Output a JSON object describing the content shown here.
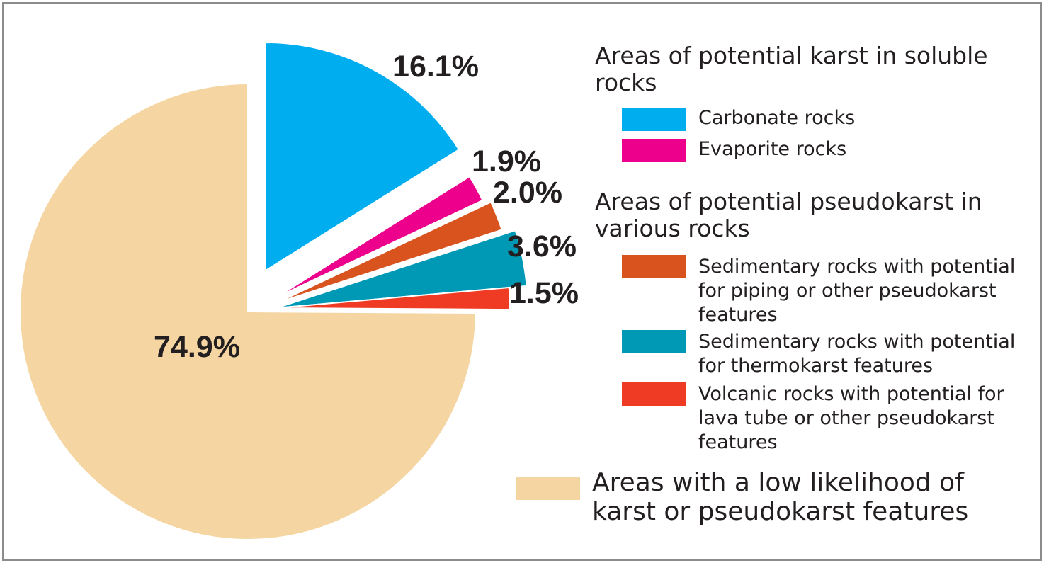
{
  "chart_data": {
    "type": "pie",
    "slices": [
      {
        "label": "Carbonate rocks",
        "value": 16.1,
        "display": "16.1%",
        "color": "#00aeef",
        "group": "karst"
      },
      {
        "label": "Evaporite rocks",
        "value": 1.9,
        "display": "1.9%",
        "color": "#ec008c",
        "group": "karst"
      },
      {
        "label": "Sedimentary rocks with potential for piping or other pseudokarst features",
        "value": 2.0,
        "display": "2.0%",
        "color": "#d9531e",
        "group": "pseudokarst"
      },
      {
        "label": "Sedimentary rocks with potential for thermokarst features",
        "value": 3.6,
        "display": "3.6%",
        "color": "#0099b5",
        "group": "pseudokarst"
      },
      {
        "label": "Volcanic rocks with potential for lava tube or other pseudokarst features",
        "value": 1.5,
        "display": "1.5%",
        "color": "#ef3b24",
        "group": "pseudokarst"
      },
      {
        "label": "Areas with a low likelihood of karst or pseudokarst features",
        "value": 74.9,
        "display": "74.9%",
        "color": "#f5d5a2",
        "group": "low"
      }
    ],
    "legend_placement": "right",
    "legend_groups": [
      {
        "heading": "Areas of potential karst in soluble rocks"
      },
      {
        "heading": "Areas of potential pseudokarst in various rocks"
      }
    ]
  }
}
